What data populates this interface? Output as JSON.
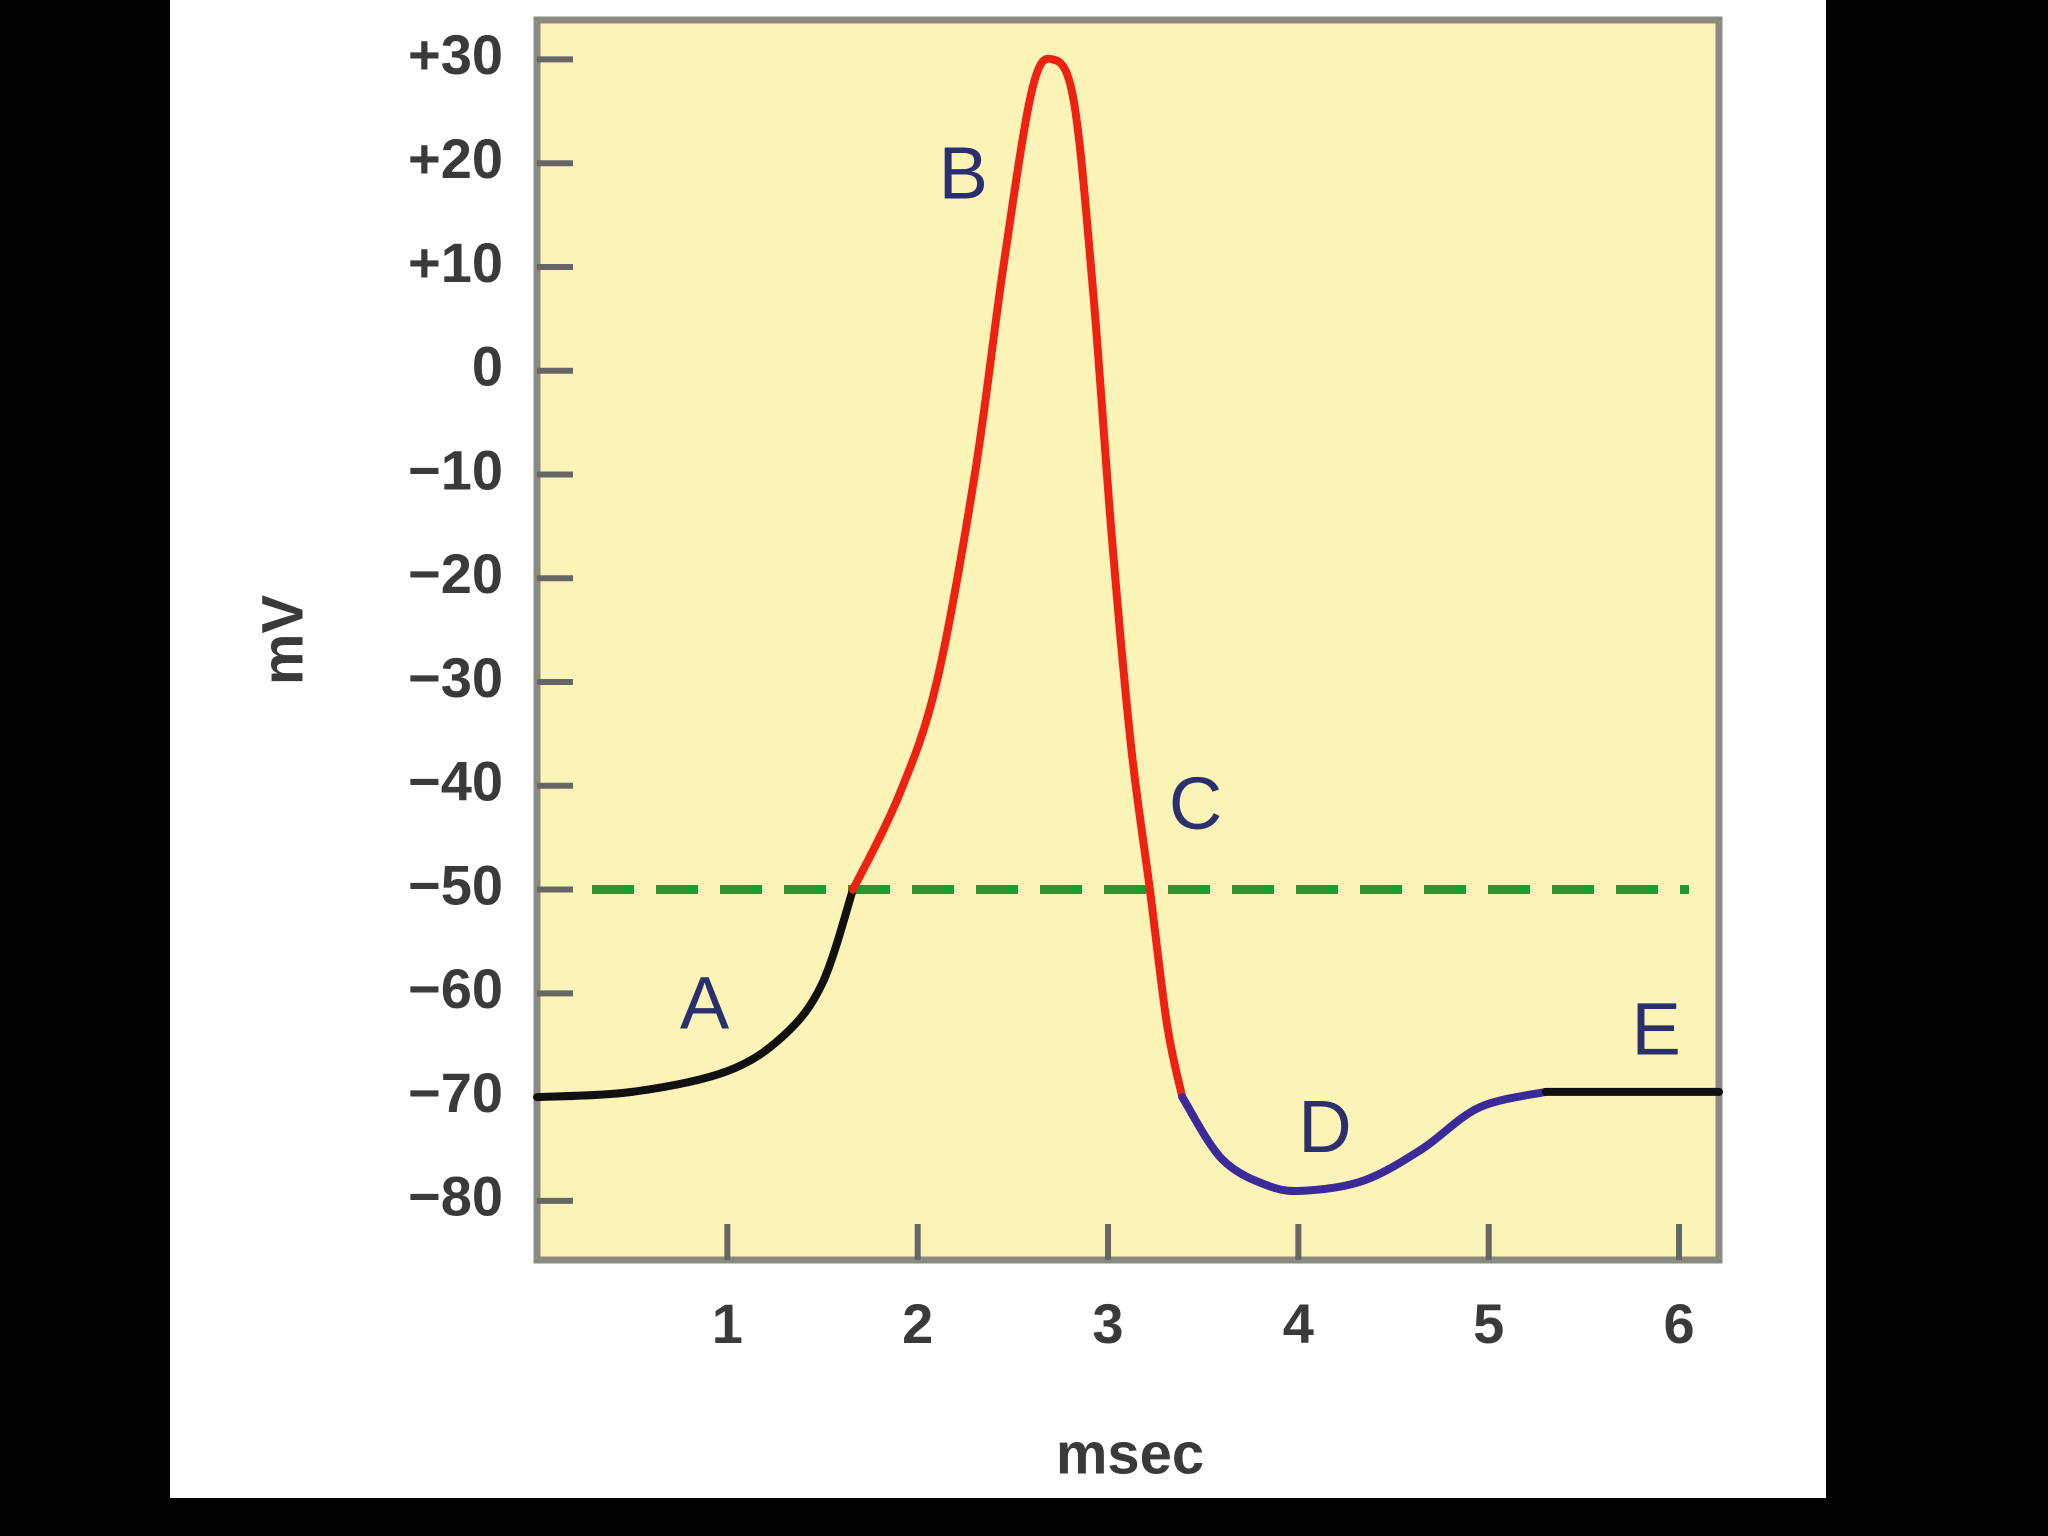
{
  "chart_data": {
    "type": "line",
    "xlabel": "msec",
    "ylabel": "mV",
    "xlim": [
      0,
      6.21
    ],
    "ylim": [
      -85.7,
      33.8
    ],
    "xticks": [
      1,
      2,
      3,
      4,
      5,
      6
    ],
    "yticks": [
      {
        "value": 30,
        "label": "+30"
      },
      {
        "value": 20,
        "label": "+20"
      },
      {
        "value": 10,
        "label": "+10"
      },
      0,
      {
        "value": -10,
        "label": "−10"
      },
      {
        "value": -20,
        "label": "−20"
      },
      {
        "value": -30,
        "label": "−30"
      },
      {
        "value": -40,
        "label": "−40"
      },
      {
        "value": -50,
        "label": "−50"
      },
      {
        "value": -60,
        "label": "−60"
      },
      {
        "value": -70,
        "label": "−70"
      },
      {
        "value": -80,
        "label": "−80"
      }
    ],
    "background": "#fcf4b6",
    "reference_line": {
      "value": -50,
      "color": "#1f9a2c",
      "dashed": true
    },
    "series": [
      {
        "color": "#111111",
        "x": [
          0,
          0.5,
          1.0,
          1.3,
          1.5,
          1.66
        ],
        "values": [
          -70,
          -69.5,
          -67.5,
          -64,
          -59,
          -50
        ]
      },
      {
        "color": "#ee2211",
        "x": [
          1.66,
          1.9,
          2.1,
          2.3,
          2.45,
          2.6,
          2.71,
          2.82,
          2.92,
          3.02,
          3.12,
          3.22,
          3.31,
          3.39
        ],
        "values": [
          -50,
          -41,
          -30,
          -10,
          10,
          27,
          30,
          26,
          8,
          -16,
          -36,
          -50,
          -63,
          -70
        ]
      },
      {
        "color": "#3a2a9a",
        "x": [
          3.39,
          3.6,
          3.85,
          4.05,
          4.35,
          4.65,
          4.95,
          5.3
        ],
        "values": [
          -70,
          -76,
          -78.6,
          -79,
          -78,
          -75,
          -71,
          -69.5
        ]
      },
      {
        "color": "#111111",
        "x": [
          5.3,
          6.21
        ],
        "values": [
          -69.5,
          -69.5
        ]
      }
    ],
    "annotations": [
      "A",
      "B",
      "C",
      "D",
      "E"
    ]
  }
}
